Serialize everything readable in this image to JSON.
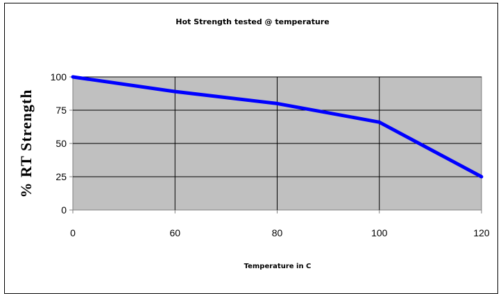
{
  "chart_data": {
    "type": "line",
    "title": "Hot Strength tested @ temperature",
    "xlabel": "Temperature in C",
    "ylabel": "% RT Strength",
    "categories": [
      "0",
      "60",
      "80",
      "100",
      "120"
    ],
    "series": [
      {
        "values": [
          100,
          89,
          80,
          66,
          25
        ]
      }
    ],
    "ylim": [
      0,
      100
    ],
    "yticks": [
      "0",
      "25",
      "50",
      "75",
      "100"
    ],
    "grid": true,
    "legend": "none",
    "colors": {
      "line": "#0000ff",
      "plot_background": "#c0c0c0",
      "grid": "#000000",
      "axis": "#808080"
    }
  }
}
